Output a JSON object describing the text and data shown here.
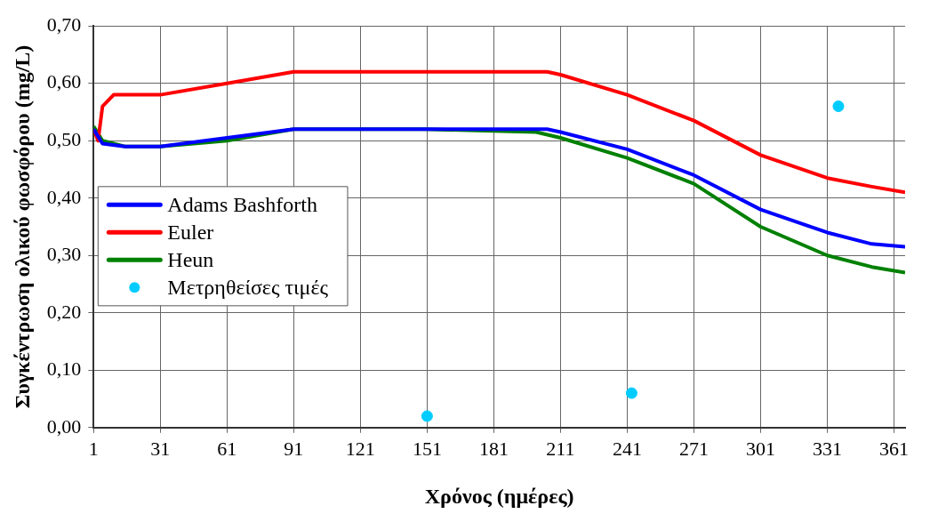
{
  "chart_data": {
    "type": "line",
    "xlabel": "Χρόνος (ημέρες)",
    "ylabel": "Συγκέντρωση ολικού φωσφόρου (mg/L)",
    "xlim": [
      1,
      366
    ],
    "xticks": [
      1,
      31,
      61,
      91,
      121,
      151,
      181,
      211,
      241,
      271,
      301,
      331,
      361
    ],
    "ylim": [
      0,
      0.7
    ],
    "yticks": [
      {
        "value": 0,
        "label": "0,00"
      },
      {
        "value": 0.1,
        "label": "0,10"
      },
      {
        "value": 0.2,
        "label": "0,20"
      },
      {
        "value": 0.3,
        "label": "0,30"
      },
      {
        "value": 0.4,
        "label": "0,40"
      },
      {
        "value": 0.5,
        "label": "0,50"
      },
      {
        "value": 0.6,
        "label": "0,60"
      },
      {
        "value": 0.7,
        "label": "0,70"
      }
    ],
    "grid": true,
    "legend": "left",
    "line_style": "solid",
    "series": [
      {
        "name": "Adams Bashforth",
        "color": "#0000ff",
        "x": [
          1,
          5,
          15,
          31,
          61,
          91,
          150,
          205,
          211,
          241,
          271,
          301,
          331,
          351,
          366
        ],
        "values": [
          0.52,
          0.495,
          0.49,
          0.49,
          0.505,
          0.52,
          0.52,
          0.52,
          0.515,
          0.485,
          0.44,
          0.38,
          0.34,
          0.32,
          0.315
        ]
      },
      {
        "name": "Euler",
        "color": "#ff0000",
        "x": [
          1,
          3,
          5,
          10,
          31,
          61,
          91,
          150,
          205,
          211,
          241,
          271,
          301,
          331,
          351,
          366
        ],
        "values": [
          0.52,
          0.5,
          0.56,
          0.58,
          0.58,
          0.6,
          0.62,
          0.62,
          0.62,
          0.615,
          0.58,
          0.535,
          0.475,
          0.435,
          0.42,
          0.41
        ]
      },
      {
        "name": "Heun",
        "color": "#008000",
        "x": [
          1,
          5,
          15,
          31,
          61,
          91,
          150,
          200,
          211,
          241,
          271,
          301,
          331,
          351,
          366
        ],
        "values": [
          0.525,
          0.5,
          0.49,
          0.49,
          0.5,
          0.52,
          0.52,
          0.515,
          0.505,
          0.47,
          0.425,
          0.35,
          0.3,
          0.28,
          0.27
        ]
      },
      {
        "name": "Μετρηθείσες τιμές",
        "type": "scatter",
        "marker": "circle",
        "color": "#00ccff",
        "x": [
          151,
          243,
          336
        ],
        "values": [
          0.02,
          0.06,
          0.56
        ]
      }
    ]
  }
}
